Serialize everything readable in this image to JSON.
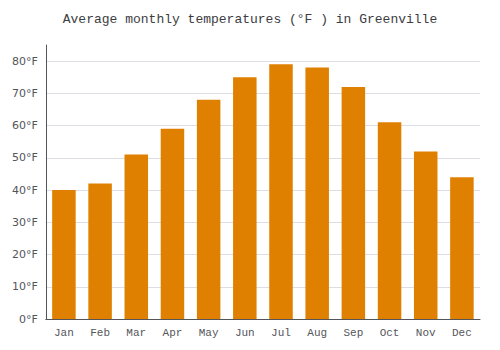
{
  "chart_data": {
    "type": "bar",
    "title": "Average monthly temperatures (°F ) in Greenville",
    "categories": [
      "Jan",
      "Feb",
      "Mar",
      "Apr",
      "May",
      "Jun",
      "Jul",
      "Aug",
      "Sep",
      "Oct",
      "Nov",
      "Dec"
    ],
    "values": [
      40,
      42,
      51,
      59,
      68,
      75,
      79,
      78,
      72,
      61,
      52,
      44
    ],
    "color": "#E08000",
    "ylim": [
      0,
      85
    ],
    "yticks": [
      {
        "value": 0,
        "label": "0°F"
      },
      {
        "value": 10,
        "label": "10°F"
      },
      {
        "value": 20,
        "label": "20°F"
      },
      {
        "value": 30,
        "label": "30°F"
      },
      {
        "value": 40,
        "label": "40°F"
      },
      {
        "value": 50,
        "label": "50°F"
      },
      {
        "value": 60,
        "label": "60°F"
      },
      {
        "value": 70,
        "label": "70°F"
      },
      {
        "value": 80,
        "label": "80°F"
      }
    ],
    "grid": true
  }
}
